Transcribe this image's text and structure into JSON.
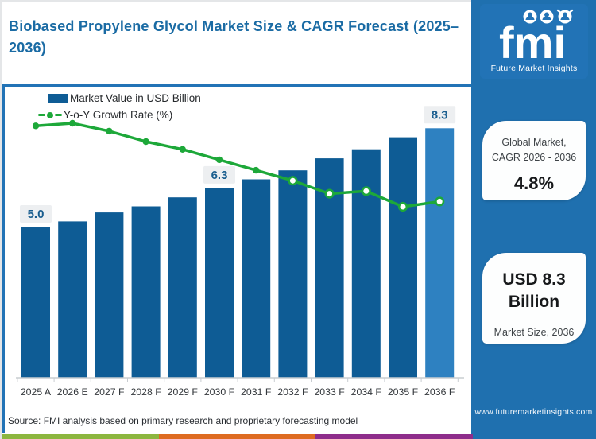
{
  "page": {
    "title": "Biobased Propylene Glycol Market Size & CAGR Forecast (2025–2036)",
    "source_note": "Source: FMI analysis based on primary research and proprietary forecasting model"
  },
  "legend": {
    "bar_label": "Market Value in USD Billion",
    "line_label": "Y-o-Y Growth Rate (%)"
  },
  "chart_data": {
    "type": "combo",
    "title": "Biobased Propylene Glycol Market Size & CAGR Forecast (2025–2036)",
    "categories": [
      "2025 A",
      "2026 E",
      "2027 F",
      "2028 F",
      "2029 F",
      "2030 F",
      "2031 F",
      "2032 F",
      "2033 F",
      "2034 F",
      "2035 F",
      "2036 F"
    ],
    "series": [
      {
        "name": "Market Value in USD Billion",
        "type": "bar",
        "values": [
          5.0,
          5.2,
          5.5,
          5.7,
          6.0,
          6.3,
          6.6,
          6.9,
          7.3,
          7.6,
          8.0,
          8.3
        ]
      },
      {
        "name": "Y-o-Y Growth Rate (%)",
        "type": "line",
        "values": [
          5.75,
          5.8,
          5.65,
          5.45,
          5.3,
          5.1,
          4.9,
          4.7,
          4.45,
          4.5,
          4.2,
          4.3
        ]
      }
    ],
    "bar_value_labels": [
      {
        "index": 0,
        "text": "5.0"
      },
      {
        "index": 5,
        "text": "6.3"
      },
      {
        "index": 11,
        "text": "8.3"
      }
    ],
    "highlight_bar_index": 11,
    "hollow_marker_from_index": 7,
    "bar_ylim": [
      0,
      9.7
    ],
    "grid": false,
    "legend_position": "top-left",
    "xlabel": "",
    "ylabel": ""
  },
  "sidebar": {
    "logo": {
      "text": "fmi",
      "subtitle": "Future Market Insights"
    },
    "cagr_card": {
      "line1": "Global Market,",
      "line2": "CAGR 2026 - 2036",
      "value": "4.8%"
    },
    "size_card": {
      "value_line1": "USD 8.3",
      "value_line2": "Billion",
      "label": "Market Size, 2036"
    },
    "website": "www.futuremarketinsights.com"
  },
  "colors": {
    "bar": "#0E5C95",
    "bar_highlight": "#2E81C1",
    "line": "#1DA839",
    "label_text": "#1A5E8F",
    "label_bg": "#EDEFF1",
    "axis": "#C9CDD1",
    "xlabel": "#34383C",
    "title_blue": "#1A6BA4",
    "panel_border": "#2273B6",
    "sidebar_bg": "#1F70AF",
    "logo_bg": "#2273B6",
    "stripe": [
      "#8CB63F",
      "#DE6B21",
      "#8E2D8B"
    ]
  }
}
